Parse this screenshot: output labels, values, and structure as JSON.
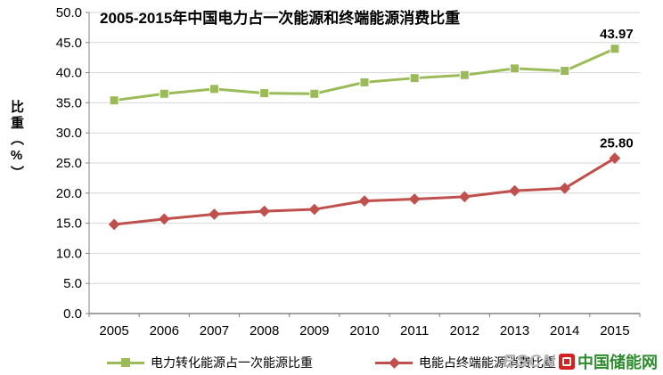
{
  "chart_data": {
    "type": "line",
    "title": "2005-2015年中国电力占一次能源和终端能源消费比重",
    "ylabel": "比重（%）",
    "xlabel": "",
    "ylim": [
      0,
      50
    ],
    "ytick_step": 5,
    "ytick_format_decimals": 1,
    "grid": true,
    "legend_position": "bottom",
    "categories": [
      "2005",
      "2006",
      "2007",
      "2008",
      "2009",
      "2010",
      "2011",
      "2012",
      "2013",
      "2014",
      "2015"
    ],
    "series": [
      {
        "name": "电力转化能源占一次能源比重",
        "color": "#9BBB59",
        "marker": "square",
        "values": [
          35.4,
          36.5,
          37.3,
          36.6,
          36.5,
          38.4,
          39.1,
          39.6,
          40.7,
          40.3,
          43.97
        ],
        "end_label": "43.97"
      },
      {
        "name": "电能占终端能源消费比重",
        "color": "#C0504D",
        "marker": "diamond",
        "values": [
          14.8,
          15.7,
          16.5,
          17.0,
          17.3,
          18.7,
          19.0,
          19.4,
          20.4,
          20.8,
          25.8
        ],
        "end_label": "25.80"
      }
    ]
  },
  "watermark": {
    "escn": "ESCN",
    "cn": "中国储能网"
  },
  "colors": {
    "gridline": "#d6d6d6",
    "axis": "#808080",
    "text": "#000000"
  }
}
